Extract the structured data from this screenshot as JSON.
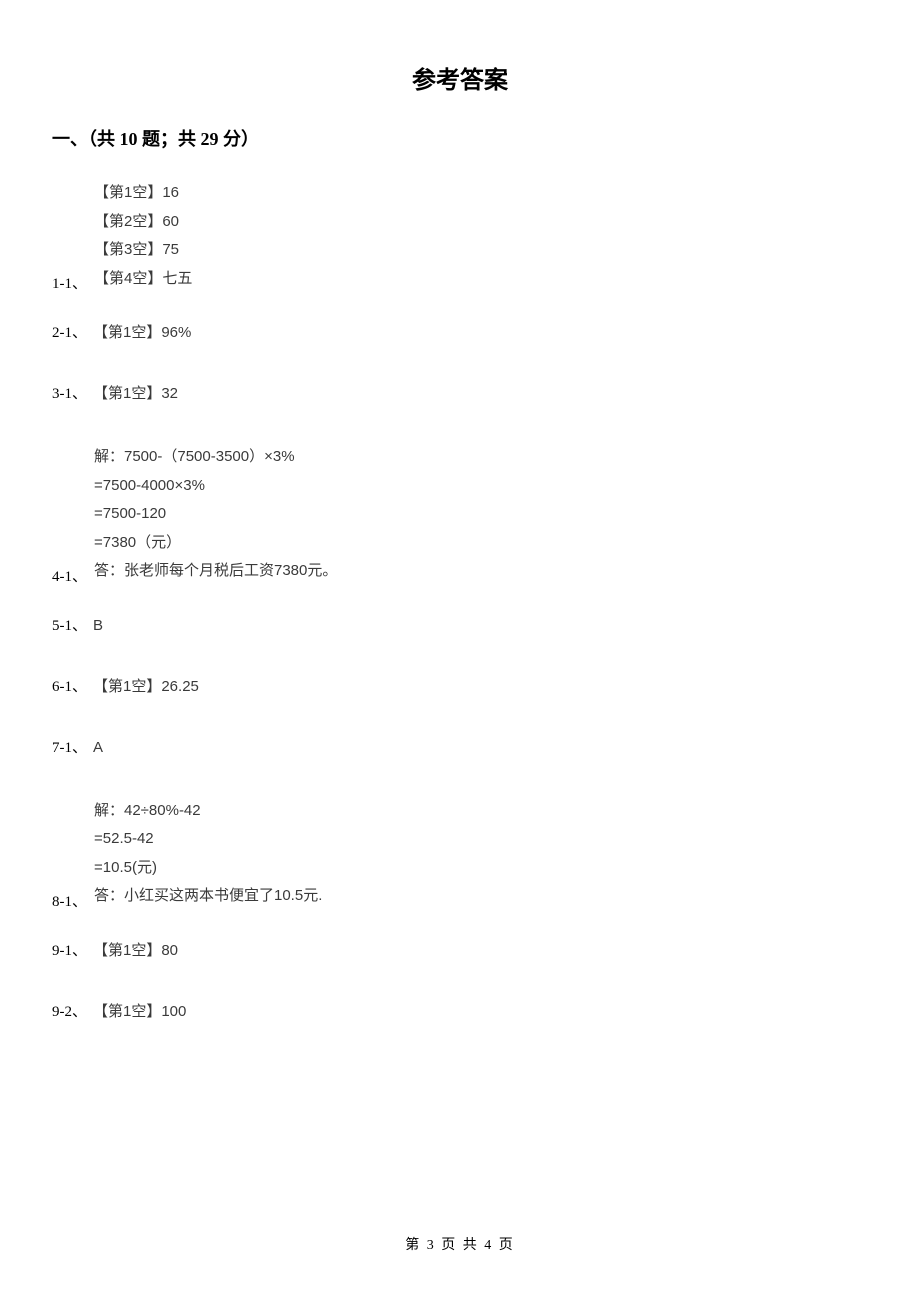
{
  "page_title": "参考答案",
  "section_header": "一、（共 10 题；共 29 分）",
  "answers": {
    "q1": {
      "label": "1-1、",
      "lines": [
        "【第1空】16",
        "【第2空】60",
        "【第3空】75",
        "【第4空】七五"
      ]
    },
    "q2": {
      "label": "2-1、",
      "content": "【第1空】96%"
    },
    "q3": {
      "label": "3-1、",
      "content": "【第1空】32"
    },
    "q4": {
      "label": "4-1、",
      "lines": [
        "解：7500-（7500-3500）×3%",
        "=7500-4000×3%",
        "=7500-120",
        "=7380（元）",
        "答：张老师每个月税后工资7380元。"
      ]
    },
    "q5": {
      "label": "5-1、",
      "content": "B"
    },
    "q6": {
      "label": "6-1、",
      "content": "【第1空】26.25"
    },
    "q7": {
      "label": "7-1、",
      "content": "A"
    },
    "q8": {
      "label": "8-1、",
      "lines": [
        "解：42÷80%-42",
        "=52.5-42",
        "=10.5(元)",
        "答：小红买这两本书便宜了10.5元."
      ]
    },
    "q9": {
      "label": "9-1、",
      "content": "【第1空】80"
    },
    "q9b": {
      "label": "9-2、",
      "content": "【第1空】100"
    }
  },
  "footer": "第 3 页 共 4 页"
}
